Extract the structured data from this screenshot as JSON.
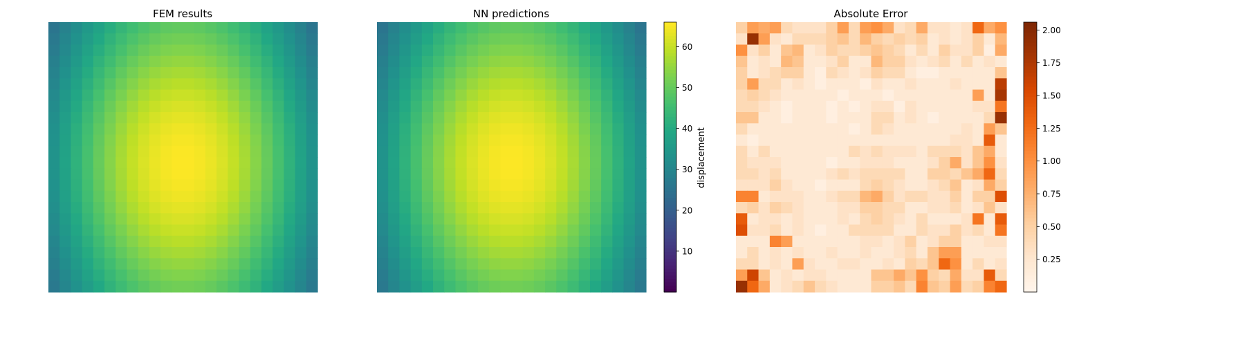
{
  "chart_data": [
    {
      "type": "heatmap",
      "title": "FEM results",
      "rows": 24,
      "cols": 24,
      "colormap": "viridis",
      "vmin": 0,
      "vmax": 66,
      "peak": {
        "row": 12,
        "col": 11.5
      },
      "axis_visible": false
    },
    {
      "type": "heatmap",
      "title": "NN predictions",
      "rows": 24,
      "cols": 24,
      "colormap": "viridis",
      "vmin": 0,
      "vmax": 66,
      "peak": {
        "row": 12,
        "col": 11.5
      },
      "axis_visible": false,
      "colorbar": {
        "label": "displacement",
        "ticks": [
          10,
          20,
          30,
          40,
          50,
          60
        ],
        "range": [
          0,
          66
        ]
      }
    },
    {
      "type": "heatmap",
      "title": "Absolute Error",
      "rows": 24,
      "cols": 24,
      "colormap": "Oranges",
      "vmin": 0,
      "vmax": 2.06,
      "axis_visible": false,
      "colorbar": {
        "label": "",
        "ticks": [
          0.25,
          0.5,
          0.75,
          1.0,
          1.25,
          1.5,
          1.75,
          2.0
        ],
        "tick_labels": [
          "0.25",
          "0.50",
          "0.75",
          "1.00",
          "1.25",
          "1.50",
          "1.75",
          "2.00"
        ],
        "range": [
          0,
          2.06
        ]
      },
      "values": [
        [
          0.5,
          0.9,
          0.8,
          0.9,
          0.4,
          0.3,
          0.3,
          0.3,
          0.5,
          0.9,
          0.4,
          0.9,
          1.0,
          0.8,
          0.3,
          0.4,
          0.8,
          0.3,
          0.3,
          0.2,
          0.3,
          1.3,
          0.8,
          1.0
        ],
        [
          0.3,
          1.9,
          0.9,
          0.3,
          0.2,
          0.4,
          0.4,
          0.4,
          0.5,
          0.6,
          0.4,
          0.7,
          0.5,
          0.4,
          0.5,
          0.4,
          0.5,
          0.2,
          0.3,
          0.2,
          0.3,
          0.5,
          0.2,
          0.7
        ],
        [
          1.0,
          0.3,
          0.5,
          0.2,
          0.6,
          0.7,
          0.2,
          0.3,
          0.5,
          0.4,
          0.4,
          0.5,
          0.6,
          0.5,
          0.4,
          0.2,
          0.4,
          0.2,
          0.5,
          0.3,
          0.3,
          0.5,
          0.1,
          0.8
        ],
        [
          0.6,
          0.2,
          0.3,
          0.2,
          0.7,
          0.6,
          0.2,
          0.2,
          0.3,
          0.5,
          0.2,
          0.2,
          0.7,
          0.5,
          0.5,
          0.3,
          0.2,
          0.3,
          0.4,
          0.2,
          0.4,
          0.2,
          0.3,
          0.2
        ],
        [
          0.5,
          0.2,
          0.3,
          0.4,
          0.5,
          0.5,
          0.2,
          0.1,
          0.4,
          0.3,
          0.2,
          0.3,
          0.5,
          0.4,
          0.4,
          0.2,
          0.1,
          0.1,
          0.2,
          0.2,
          0.2,
          0.2,
          0.2,
          0.6
        ],
        [
          0.5,
          0.9,
          0.4,
          0.4,
          0.2,
          0.3,
          0.2,
          0.1,
          0.2,
          0.2,
          0.2,
          0.1,
          0.3,
          0.2,
          0.2,
          0.3,
          0.2,
          0.2,
          0.2,
          0.3,
          0.2,
          0.2,
          0.2,
          1.7
        ],
        [
          0.4,
          0.5,
          0.4,
          0.3,
          0.2,
          0.2,
          0.2,
          0.2,
          0.2,
          0.1,
          0.2,
          0.2,
          0.2,
          0.1,
          0.2,
          0.2,
          0.2,
          0.2,
          0.2,
          0.2,
          0.2,
          0.9,
          0.2,
          1.8
        ],
        [
          0.4,
          0.4,
          0.3,
          0.2,
          0.1,
          0.2,
          0.2,
          0.2,
          0.1,
          0.2,
          0.1,
          0.2,
          0.3,
          0.3,
          0.1,
          0.3,
          0.2,
          0.2,
          0.2,
          0.2,
          0.2,
          0.3,
          0.3,
          1.2
        ],
        [
          0.6,
          0.6,
          0.2,
          0.2,
          0.1,
          0.2,
          0.2,
          0.2,
          0.1,
          0.2,
          0.2,
          0.2,
          0.4,
          0.4,
          0.2,
          0.3,
          0.2,
          0.1,
          0.2,
          0.2,
          0.2,
          0.2,
          0.4,
          1.9
        ],
        [
          0.4,
          0.2,
          0.2,
          0.2,
          0.2,
          0.2,
          0.2,
          0.2,
          0.2,
          0.2,
          0.1,
          0.2,
          0.4,
          0.3,
          0.2,
          0.2,
          0.2,
          0.2,
          0.2,
          0.2,
          0.3,
          0.2,
          0.9,
          0.6
        ],
        [
          0.2,
          0.1,
          0.2,
          0.2,
          0.2,
          0.2,
          0.2,
          0.2,
          0.2,
          0.2,
          0.2,
          0.2,
          0.2,
          0.2,
          0.2,
          0.2,
          0.2,
          0.2,
          0.2,
          0.3,
          0.3,
          0.2,
          1.4,
          0.2
        ],
        [
          0.4,
          0.2,
          0.4,
          0.2,
          0.2,
          0.2,
          0.2,
          0.2,
          0.2,
          0.2,
          0.4,
          0.3,
          0.4,
          0.3,
          0.3,
          0.3,
          0.2,
          0.4,
          0.4,
          0.4,
          0.3,
          0.6,
          0.8,
          0.2
        ],
        [
          0.4,
          0.3,
          0.3,
          0.3,
          0.2,
          0.2,
          0.2,
          0.2,
          0.1,
          0.2,
          0.2,
          0.3,
          0.3,
          0.3,
          0.2,
          0.2,
          0.2,
          0.3,
          0.5,
          0.8,
          0.3,
          0.6,
          1.0,
          0.3
        ],
        [
          0.4,
          0.4,
          0.3,
          0.4,
          0.2,
          0.2,
          0.2,
          0.2,
          0.3,
          0.4,
          0.3,
          0.4,
          0.4,
          0.4,
          0.4,
          0.2,
          0.2,
          0.5,
          0.5,
          0.4,
          0.6,
          0.8,
          1.3,
          0.4
        ],
        [
          0.3,
          0.3,
          0.3,
          0.5,
          0.3,
          0.2,
          0.2,
          0.1,
          0.2,
          0.2,
          0.2,
          0.4,
          0.5,
          0.4,
          0.3,
          0.2,
          0.2,
          0.3,
          0.4,
          0.6,
          0.2,
          0.3,
          0.8,
          0.5
        ],
        [
          1.1,
          1.1,
          0.2,
          0.3,
          0.3,
          0.3,
          0.2,
          0.2,
          0.3,
          0.4,
          0.4,
          0.7,
          0.8,
          0.5,
          0.3,
          0.4,
          0.4,
          0.3,
          0.3,
          0.5,
          0.2,
          0.5,
          0.5,
          1.5
        ],
        [
          0.4,
          0.5,
          0.3,
          0.5,
          0.4,
          0.3,
          0.2,
          0.2,
          0.2,
          0.3,
          0.3,
          0.5,
          0.5,
          0.4,
          0.4,
          0.2,
          0.2,
          0.3,
          0.3,
          0.4,
          0.2,
          0.3,
          0.6,
          0.3
        ],
        [
          1.4,
          0.2,
          0.3,
          0.3,
          0.2,
          0.3,
          0.2,
          0.2,
          0.2,
          0.3,
          0.2,
          0.4,
          0.5,
          0.4,
          0.3,
          0.2,
          0.4,
          0.2,
          0.2,
          0.2,
          0.3,
          1.2,
          0.2,
          1.4
        ],
        [
          1.5,
          0.3,
          0.3,
          0.4,
          0.2,
          0.3,
          0.2,
          0.1,
          0.2,
          0.2,
          0.4,
          0.4,
          0.4,
          0.4,
          0.2,
          0.2,
          0.4,
          0.3,
          0.3,
          0.5,
          0.3,
          0.4,
          0.2,
          1.2
        ],
        [
          0.2,
          0.2,
          0.2,
          1.1,
          0.9,
          0.2,
          0.2,
          0.2,
          0.2,
          0.2,
          0.2,
          0.3,
          0.3,
          0.2,
          0.3,
          0.5,
          0.2,
          0.3,
          0.5,
          0.5,
          0.2,
          0.2,
          0.3,
          0.3
        ],
        [
          0.2,
          0.4,
          0.2,
          0.3,
          0.2,
          0.3,
          0.2,
          0.2,
          0.3,
          0.2,
          0.2,
          0.3,
          0.2,
          0.2,
          0.3,
          0.4,
          0.2,
          0.6,
          0.9,
          0.9,
          0.2,
          0.2,
          0.2,
          0.2
        ],
        [
          0.4,
          0.4,
          0.2,
          0.3,
          0.2,
          0.9,
          0.3,
          0.2,
          0.2,
          0.3,
          0.3,
          0.2,
          0.2,
          0.3,
          0.2,
          0.5,
          0.4,
          0.6,
          1.3,
          1.0,
          0.2,
          0.4,
          0.2,
          0.3
        ],
        [
          0.9,
          1.6,
          0.6,
          0.2,
          0.3,
          0.2,
          0.3,
          0.3,
          0.2,
          0.2,
          0.2,
          0.2,
          0.6,
          0.6,
          0.8,
          0.6,
          1.0,
          0.5,
          0.4,
          0.8,
          0.3,
          0.3,
          1.4,
          0.4
        ],
        [
          1.9,
          1.3,
          0.8,
          0.2,
          0.3,
          0.4,
          0.6,
          0.4,
          0.3,
          0.2,
          0.2,
          0.2,
          0.5,
          0.5,
          0.6,
          0.4,
          1.1,
          0.6,
          0.5,
          0.9,
          0.4,
          0.5,
          1.1,
          1.3
        ]
      ]
    }
  ]
}
